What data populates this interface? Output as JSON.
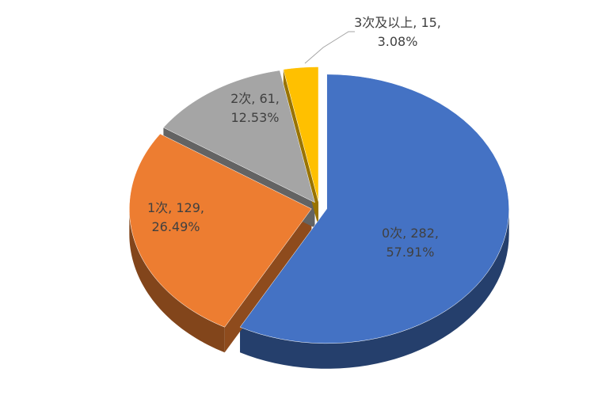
{
  "chart_data": {
    "type": "pie",
    "values": [
      282,
      129,
      61,
      15
    ],
    "colors": [
      "#4472c4",
      "#ed7d31",
      "#a5a5a5",
      "#ffc000"
    ],
    "data_labels": [
      [
        "0次, 282,",
        "57.91%"
      ],
      [
        "1次, 129,",
        "26.49%"
      ],
      [
        "2次, 61,",
        "12.53%"
      ],
      [
        "3次及以上, 15,",
        "3.08%"
      ]
    ]
  }
}
